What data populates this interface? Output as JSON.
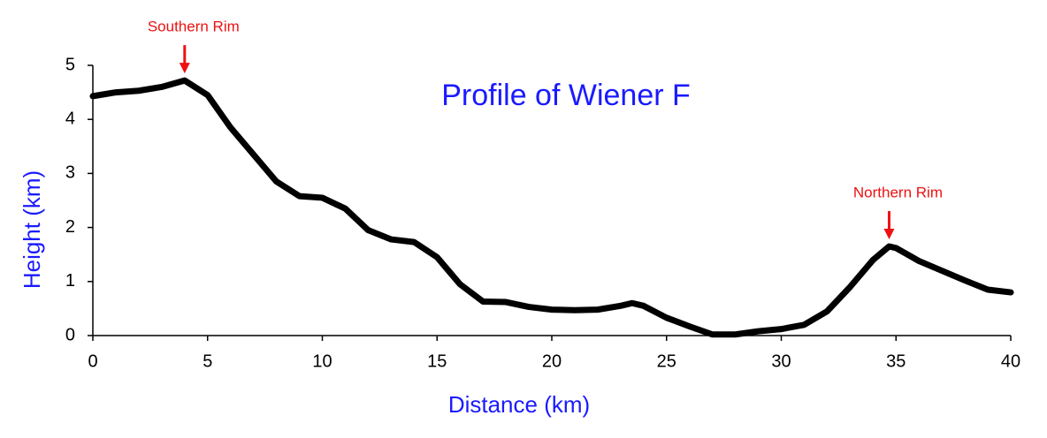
{
  "chart_data": {
    "type": "line",
    "title": "Profile of Wiener F",
    "x_label": "Distance (km)",
    "y_label": "Height (km)",
    "x": [
      0,
      1,
      2,
      3,
      4,
      5,
      6,
      7,
      8,
      9,
      10,
      11,
      12,
      13,
      14,
      15,
      16,
      17,
      18,
      19,
      20,
      21,
      22,
      23,
      23.5,
      24,
      25,
      26,
      27,
      28,
      29,
      30,
      31,
      32,
      33,
      34,
      34.7,
      35,
      36,
      37,
      38,
      39,
      40
    ],
    "series": [
      {
        "color": "#000000",
        "values": [
          4.43,
          4.5,
          4.53,
          4.6,
          4.72,
          4.45,
          3.85,
          3.35,
          2.85,
          2.58,
          2.55,
          2.35,
          1.95,
          1.78,
          1.73,
          1.45,
          0.95,
          0.63,
          0.62,
          0.53,
          0.48,
          0.47,
          0.48,
          0.55,
          0.6,
          0.55,
          0.33,
          0.17,
          0.02,
          0.02,
          0.08,
          0.12,
          0.2,
          0.45,
          0.9,
          1.4,
          1.65,
          1.62,
          1.38,
          1.2,
          1.02,
          0.85,
          0.8
        ]
      }
    ],
    "xlim": [
      0,
      40
    ],
    "xticks": [
      0,
      5,
      10,
      15,
      20,
      25,
      30,
      35,
      40
    ],
    "ylim": [
      0,
      5
    ],
    "yticks": [
      0,
      1,
      2,
      3,
      4,
      5
    ],
    "annotations": [
      {
        "text": "Southern Rim",
        "x": 4,
        "y": 4.72,
        "color": "#ee1111"
      },
      {
        "text": "Northern Rim",
        "x": 34.7,
        "y": 1.65,
        "color": "#ee1111"
      }
    ]
  }
}
